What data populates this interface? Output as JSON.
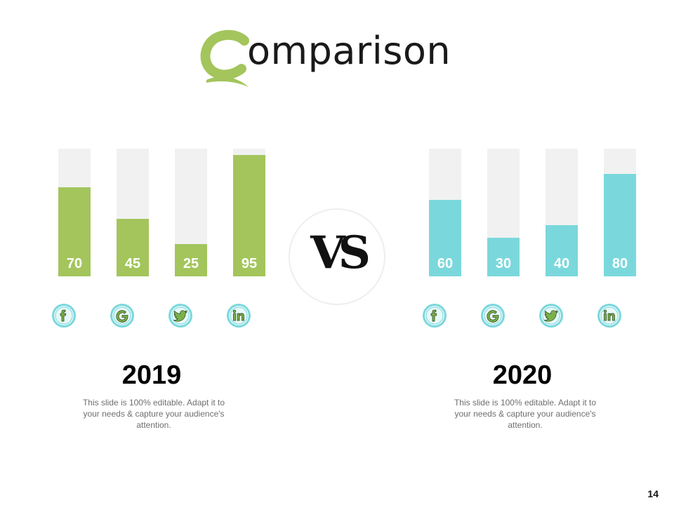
{
  "title": {
    "first_letter": "C",
    "rest": "omparison"
  },
  "colors": {
    "green": "#a3c55c",
    "teal": "#7ad8dc",
    "track": "#f1f1f1",
    "icon_ring": "#7ad8dc"
  },
  "vs_label": "VS",
  "page_number": "14",
  "icons": [
    "facebook-icon",
    "google-icon",
    "twitter-icon",
    "linkedin-icon"
  ],
  "chart_data": [
    {
      "type": "bar",
      "title": "2019",
      "categories": [
        "facebook",
        "google",
        "twitter",
        "linkedin"
      ],
      "values": [
        70,
        45,
        25,
        95
      ],
      "ylim": [
        0,
        100
      ],
      "color": "#a3c55c",
      "description": "This slide is 100% editable. Adapt it to your needs & capture your audience's attention."
    },
    {
      "type": "bar",
      "title": "2020",
      "categories": [
        "facebook",
        "google",
        "twitter",
        "linkedin"
      ],
      "values": [
        60,
        30,
        40,
        80
      ],
      "ylim": [
        0,
        100
      ],
      "color": "#7ad8dc",
      "description": "This slide is 100% editable. Adapt it to your needs & capture your audience's attention."
    }
  ]
}
